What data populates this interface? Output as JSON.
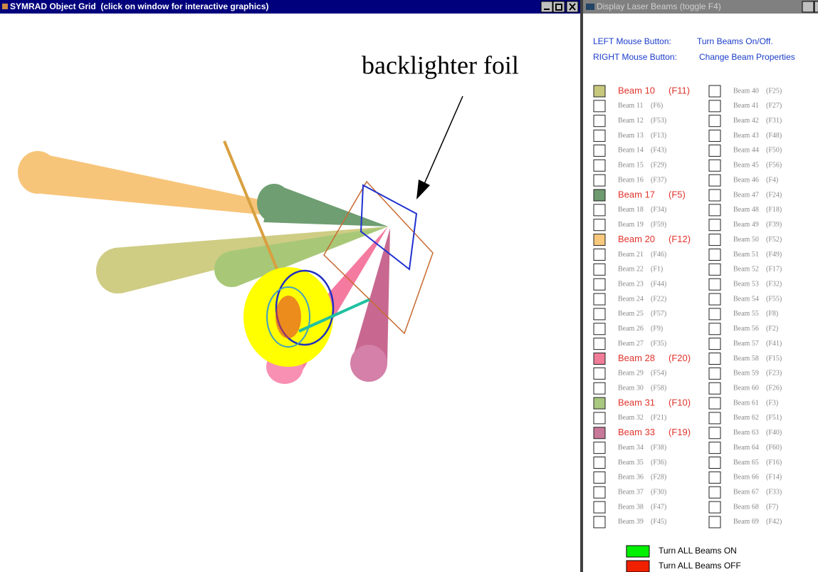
{
  "left_window": {
    "title": "SYMRAD Object Grid  (click on window for interactive graphics)",
    "annotation": "backlighter foil"
  },
  "right_window": {
    "title": "Display Laser Beams (toggle F4)",
    "instructions": [
      {
        "button": "LEFT Mouse Button:",
        "action": "Turn Beams On/Off."
      },
      {
        "button": "RIGHT Mouse Button:",
        "action": "Change Beam Properties"
      }
    ],
    "columns": [
      [
        {
          "label": "Beam 10",
          "key": "(F11)",
          "color": "#c8c87c"
        },
        {
          "label": "Beam 11",
          "key": "(F6)"
        },
        {
          "label": "Beam 12",
          "key": "(F53)"
        },
        {
          "label": "Beam 13",
          "key": "(F13)"
        },
        {
          "label": "Beam 14",
          "key": "(F43)"
        },
        {
          "label": "Beam 15",
          "key": "(F29)"
        },
        {
          "label": "Beam 16",
          "key": "(F37)"
        },
        {
          "label": "Beam 17",
          "key": "(F5)",
          "color": "#6e9a70"
        },
        {
          "label": "Beam 18",
          "key": "(F34)"
        },
        {
          "label": "Beam 19",
          "key": "(F59)"
        },
        {
          "label": "Beam 20",
          "key": "(F12)",
          "color": "#f8c87c"
        },
        {
          "label": "Beam 21",
          "key": "(F46)"
        },
        {
          "label": "Beam 22",
          "key": "(F1)"
        },
        {
          "label": "Beam 23",
          "key": "(F44)"
        },
        {
          "label": "Beam 24",
          "key": "(F22)"
        },
        {
          "label": "Beam 25",
          "key": "(F57)"
        },
        {
          "label": "Beam 26",
          "key": "(F9)"
        },
        {
          "label": "Beam 27",
          "key": "(F35)"
        },
        {
          "label": "Beam 28",
          "key": "(F20)",
          "color": "#f07c98"
        },
        {
          "label": "Beam 29",
          "key": "(F54)"
        },
        {
          "label": "Beam 30",
          "key": "(F58)"
        },
        {
          "label": "Beam 31",
          "key": "(F10)",
          "color": "#a8c880"
        },
        {
          "label": "Beam 32",
          "key": "(F21)"
        },
        {
          "label": "Beam 33",
          "key": "(F19)",
          "color": "#c87898"
        },
        {
          "label": "Beam 34",
          "key": "(F38)"
        },
        {
          "label": "Beam 35",
          "key": "(F36)"
        },
        {
          "label": "Beam 36",
          "key": "(F28)"
        },
        {
          "label": "Beam 37",
          "key": "(F30)"
        },
        {
          "label": "Beam 38",
          "key": "(F47)"
        },
        {
          "label": "Beam 39",
          "key": "(F45)"
        }
      ],
      [
        {
          "label": "Beam 40",
          "key": "(F25)"
        },
        {
          "label": "Beam 41",
          "key": "(F27)"
        },
        {
          "label": "Beam 42",
          "key": "(F31)"
        },
        {
          "label": "Beam 43",
          "key": "(F48)"
        },
        {
          "label": "Beam 44",
          "key": "(F50)"
        },
        {
          "label": "Beam 45",
          "key": "(F56)"
        },
        {
          "label": "Beam 46",
          "key": "(F4)"
        },
        {
          "label": "Beam 47",
          "key": "(F24)"
        },
        {
          "label": "Beam 48",
          "key": "(F18)"
        },
        {
          "label": "Beam 49",
          "key": "(F39)"
        },
        {
          "label": "Beam 50",
          "key": "(F52)"
        },
        {
          "label": "Beam 51",
          "key": "(F49)"
        },
        {
          "label": "Beam 52",
          "key": "(F17)"
        },
        {
          "label": "Beam 53",
          "key": "(F32)"
        },
        {
          "label": "Beam 54",
          "key": "(F55)"
        },
        {
          "label": "Beam 55",
          "key": "(F8)"
        },
        {
          "label": "Beam 56",
          "key": "(F2)"
        },
        {
          "label": "Beam 57",
          "key": "(F41)"
        },
        {
          "label": "Beam 58",
          "key": "(F15)"
        },
        {
          "label": "Beam 59",
          "key": "(F23)"
        },
        {
          "label": "Beam 60",
          "key": "(F26)"
        },
        {
          "label": "Beam 61",
          "key": "(F3)"
        },
        {
          "label": "Beam 62",
          "key": "(F51)"
        },
        {
          "label": "Beam 63",
          "key": "(F40)"
        },
        {
          "label": "Beam 64",
          "key": "(F60)"
        },
        {
          "label": "Beam 65",
          "key": "(F16)"
        },
        {
          "label": "Beam 66",
          "key": "(F14)"
        },
        {
          "label": "Beam 67",
          "key": "(F33)"
        },
        {
          "label": "Beam 68",
          "key": "(F7)"
        },
        {
          "label": "Beam 69",
          "key": "(F42)"
        }
      ]
    ],
    "actions": [
      {
        "label": "Turn ALL Beams ON",
        "color": "#00f000"
      },
      {
        "label": "Turn ALL Beams OFF",
        "color": "#f02000"
      }
    ]
  }
}
